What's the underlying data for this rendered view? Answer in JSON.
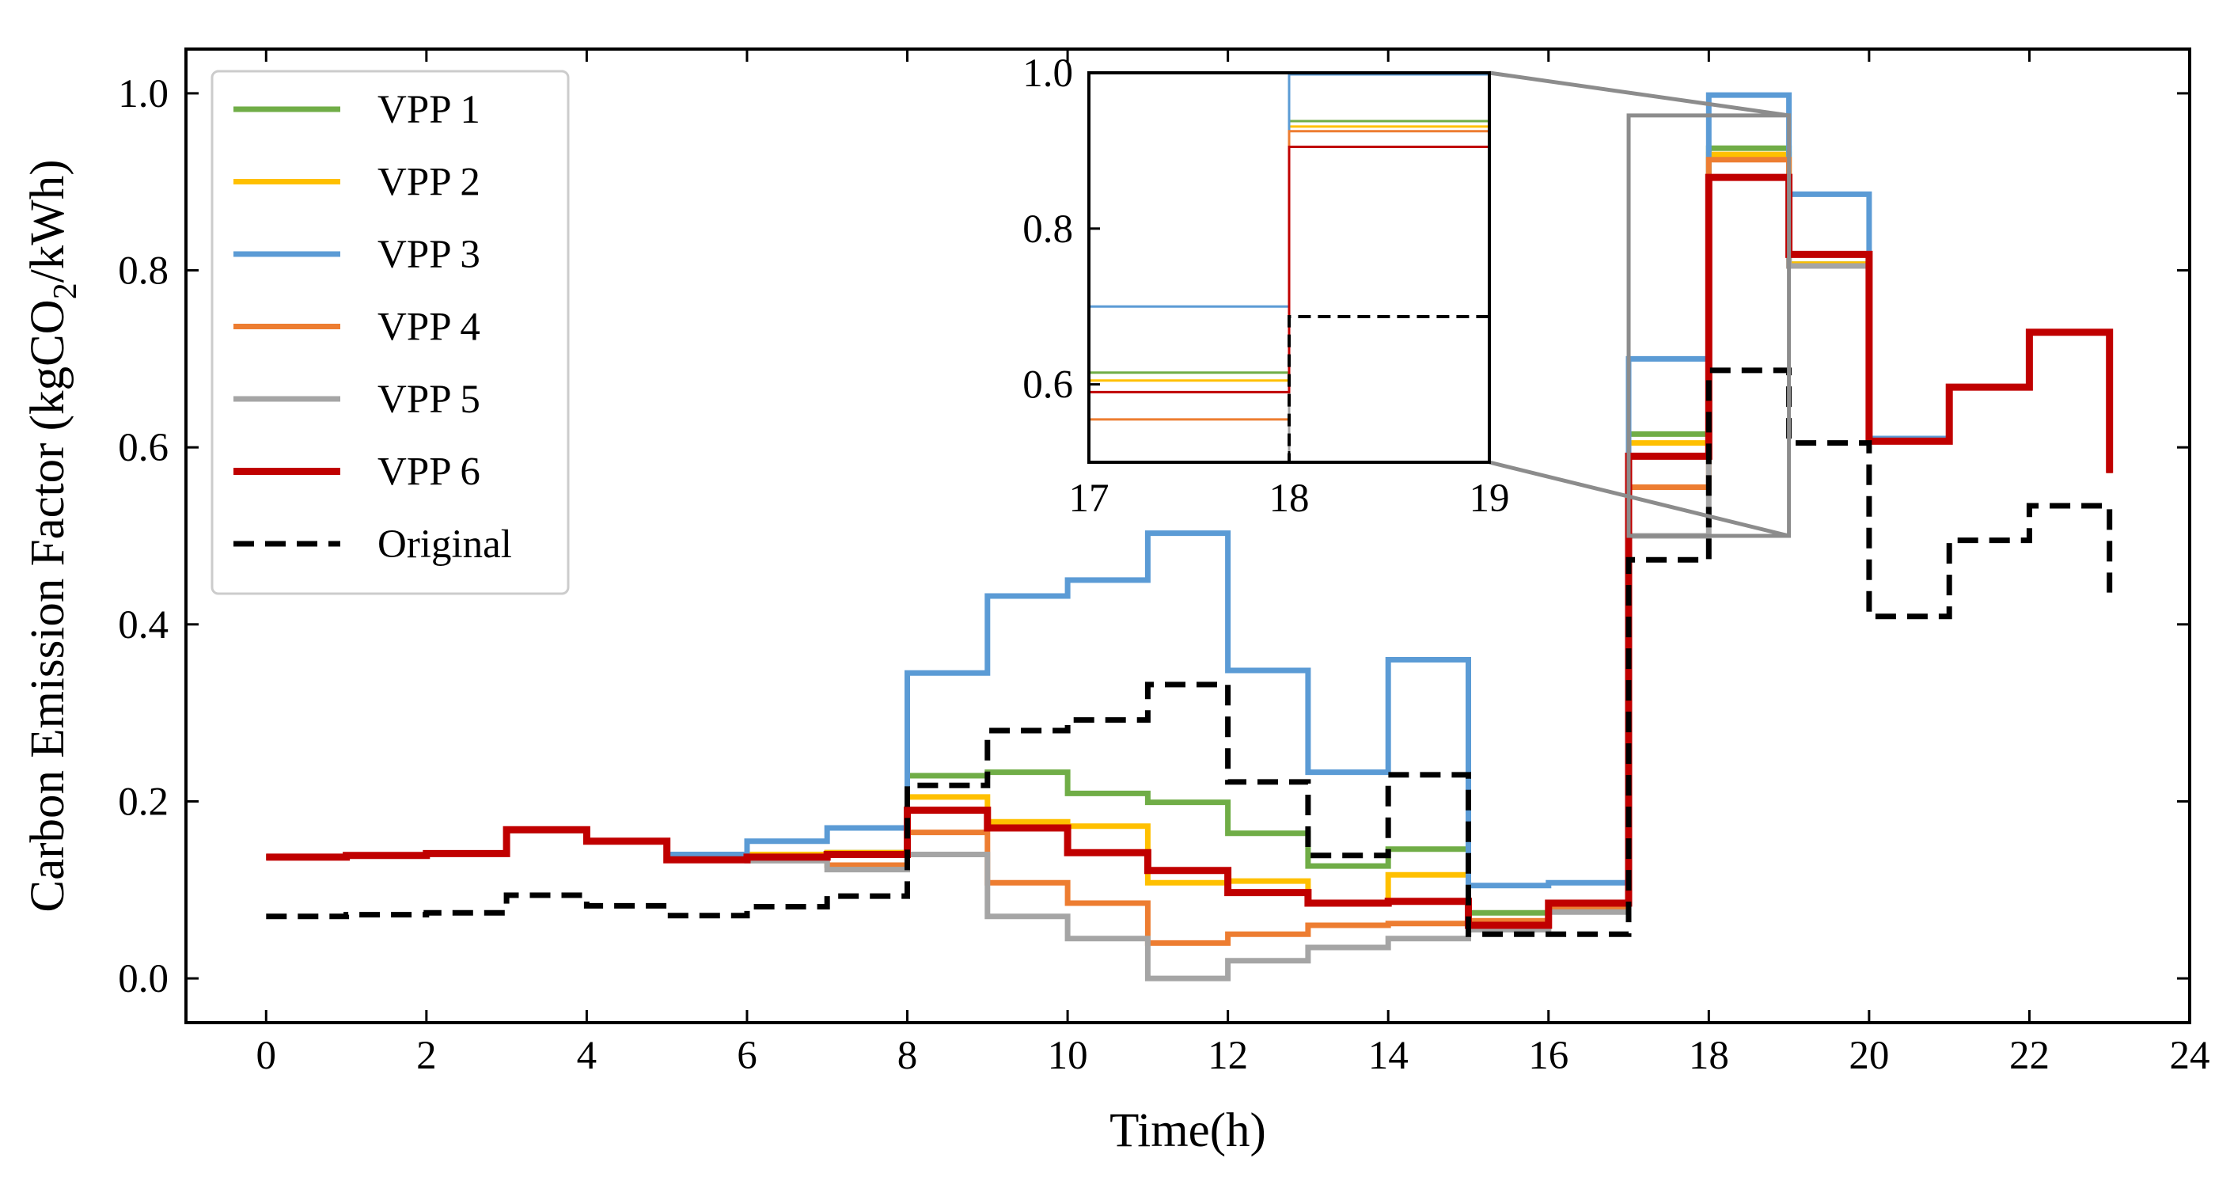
{
  "chart_data": {
    "type": "line",
    "step": "post",
    "title": "",
    "xlabel": "Time(h)",
    "ylabel_parts": {
      "before": "Carbon Emission Factor (kgCO",
      "subscript": "2",
      "after": "/kWh)"
    },
    "xlim": [
      -1,
      24
    ],
    "ylim": [
      -0.05,
      1.05
    ],
    "xticks": [
      "0",
      "2",
      "4",
      "6",
      "8",
      "10",
      "12",
      "14",
      "16",
      "18",
      "20",
      "22",
      "24"
    ],
    "yticks": [
      "0.0",
      "0.2",
      "0.4",
      "0.6",
      "0.8",
      "1.0"
    ],
    "x": [
      0,
      1,
      2,
      3,
      4,
      5,
      6,
      7,
      8,
      9,
      10,
      11,
      12,
      13,
      14,
      15,
      16,
      17,
      18,
      19,
      20,
      21,
      22,
      23
    ],
    "legend_position": "upper-left",
    "series": [
      {
        "name": "VPP 1",
        "color": "#70ad47",
        "width": 7,
        "dash": "",
        "values": [
          0.137,
          0.139,
          0.141,
          0.167,
          0.155,
          0.134,
          0.14,
          0.142,
          0.229,
          0.233,
          0.209,
          0.199,
          0.164,
          0.127,
          0.146,
          0.074,
          0.083,
          0.615,
          0.938,
          0.807,
          0.607,
          0.668,
          0.73,
          0.571
        ]
      },
      {
        "name": "VPP 2",
        "color": "#ffc000",
        "width": 7,
        "dash": "",
        "values": [
          0.137,
          0.139,
          0.141,
          0.167,
          0.155,
          0.134,
          0.14,
          0.142,
          0.205,
          0.177,
          0.172,
          0.108,
          0.11,
          0.085,
          0.117,
          0.065,
          0.085,
          0.605,
          0.931,
          0.807,
          0.607,
          0.668,
          0.73,
          0.571
        ]
      },
      {
        "name": "VPP 3",
        "color": "#5b9bd5",
        "width": 7,
        "dash": "",
        "values": [
          0.137,
          0.139,
          0.141,
          0.167,
          0.155,
          0.14,
          0.155,
          0.17,
          0.345,
          0.432,
          0.45,
          0.503,
          0.348,
          0.233,
          0.36,
          0.105,
          0.108,
          0.7,
          0.998,
          0.886,
          0.61,
          0.668,
          0.73,
          0.571
        ]
      },
      {
        "name": "VPP 4",
        "color": "#ed7d31",
        "width": 7,
        "dash": "",
        "values": [
          0.137,
          0.139,
          0.141,
          0.167,
          0.155,
          0.134,
          0.137,
          0.128,
          0.165,
          0.108,
          0.085,
          0.04,
          0.05,
          0.06,
          0.062,
          0.065,
          0.08,
          0.555,
          0.925,
          0.805,
          0.607,
          0.668,
          0.73,
          0.571
        ]
      },
      {
        "name": "VPP 5",
        "color": "#a5a5a5",
        "width": 7,
        "dash": "",
        "values": [
          0.137,
          0.139,
          0.141,
          0.167,
          0.155,
          0.134,
          0.133,
          0.123,
          0.14,
          0.07,
          0.045,
          0.0,
          0.02,
          0.035,
          0.045,
          0.055,
          0.075,
          0.5,
          0.905,
          0.805,
          0.607,
          0.668,
          0.73,
          0.571
        ]
      },
      {
        "name": "VPP 6",
        "color": "#c00000",
        "width": 9,
        "dash": "",
        "values": [
          0.137,
          0.139,
          0.141,
          0.168,
          0.155,
          0.134,
          0.137,
          0.14,
          0.19,
          0.17,
          0.142,
          0.122,
          0.097,
          0.085,
          0.087,
          0.06,
          0.085,
          0.59,
          0.905,
          0.818,
          0.607,
          0.668,
          0.73,
          0.571
        ]
      },
      {
        "name": "Original",
        "color": "#000000",
        "width": 7,
        "dash": "26,14",
        "values": [
          0.07,
          0.072,
          0.074,
          0.094,
          0.082,
          0.071,
          0.081,
          0.093,
          0.218,
          0.28,
          0.292,
          0.332,
          0.222,
          0.139,
          0.23,
          0.05,
          0.05,
          0.473,
          0.687,
          0.605,
          0.409,
          0.495,
          0.534,
          0.436
        ]
      }
    ],
    "inset": {
      "xlim": [
        17,
        19
      ],
      "ylim": [
        0.5,
        1.0
      ],
      "xticks": [
        "17",
        "18",
        "19"
      ],
      "yticks": [
        "0.6",
        "0.8",
        "1.0"
      ],
      "zoom_box": {
        "x": [
          17,
          19
        ],
        "y": [
          0.5,
          0.975
        ]
      }
    }
  }
}
